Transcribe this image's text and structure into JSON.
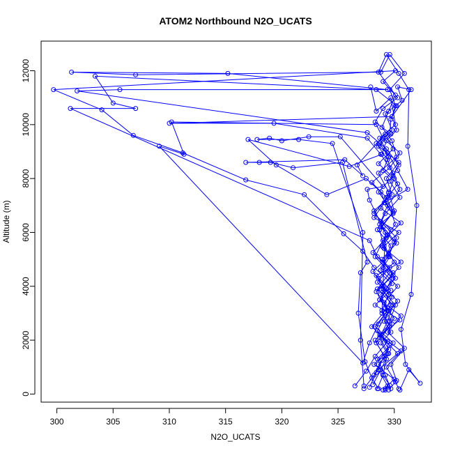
{
  "chart_data": {
    "type": "scatter",
    "title": "ATOM2 Northbound N2O_UCATS",
    "xlabel": "N2O_UCATS",
    "ylabel": "Altitude (m)",
    "xlim": [
      298.6,
      333.3
    ],
    "ylim": [
      -300,
      13100
    ],
    "xticks": [
      300,
      305,
      310,
      315,
      320,
      325,
      330
    ],
    "yticks": [
      0,
      2000,
      4000,
      6000,
      8000,
      10000,
      12000
    ],
    "grid": false,
    "legend": "none",
    "marker": "open-circle",
    "connected": true,
    "colors": {
      "series": "#0000ff",
      "axis": "#000000",
      "background": "#ffffff"
    },
    "series": [
      {
        "values": [
          [
            329.2,
            200
          ],
          [
            329.6,
            320
          ],
          [
            329.0,
            700
          ],
          [
            328.6,
            1100
          ],
          [
            329.4,
            1500
          ],
          [
            328.8,
            1900
          ],
          [
            329.7,
            2300
          ],
          [
            329.1,
            2700
          ],
          [
            329.5,
            3100
          ],
          [
            328.7,
            3500
          ],
          [
            329.3,
            3900
          ],
          [
            329.8,
            4300
          ],
          [
            329.0,
            4700
          ],
          [
            329.6,
            5100
          ],
          [
            328.9,
            5500
          ],
          [
            329.4,
            5900
          ],
          [
            328.7,
            6300
          ],
          [
            329.9,
            6700
          ],
          [
            329.2,
            7100
          ],
          [
            328.8,
            7500
          ],
          [
            327.5,
            8000
          ],
          [
            324.0,
            7400
          ],
          [
            319.5,
            8500
          ],
          [
            317.0,
            9450
          ],
          [
            326.0,
            8450
          ],
          [
            328.9,
            8900
          ],
          [
            329.3,
            9400
          ],
          [
            330.2,
            9800
          ],
          [
            329.8,
            10300
          ],
          [
            330.1,
            10700
          ],
          [
            329.6,
            11300
          ],
          [
            330.9,
            11900
          ],
          [
            329.6,
            12600
          ],
          [
            328.8,
            11950
          ],
          [
            307.0,
            11850
          ],
          [
            301.3,
            11950
          ],
          [
            315.2,
            11900
          ],
          [
            329.4,
            11300
          ],
          [
            305.6,
            11300
          ],
          [
            301.8,
            11250
          ],
          [
            327.6,
            9700
          ],
          [
            329.3,
            9100
          ],
          [
            330.4,
            8500
          ],
          [
            329.6,
            7900
          ],
          [
            330.5,
            7300
          ],
          [
            329.2,
            6700
          ],
          [
            328.5,
            6100
          ],
          [
            329.7,
            5500
          ],
          [
            329.0,
            4900
          ],
          [
            330.1,
            4300
          ],
          [
            328.8,
            3700
          ],
          [
            329.4,
            3100
          ],
          [
            328.3,
            2500
          ],
          [
            329.9,
            1900
          ],
          [
            328.5,
            1300
          ],
          [
            329.2,
            700
          ],
          [
            329.7,
            200
          ]
        ]
      },
      {
        "values": [
          [
            328.5,
            200
          ],
          [
            329.0,
            700
          ],
          [
            329.3,
            1300
          ],
          [
            328.4,
            1900
          ],
          [
            329.6,
            2500
          ],
          [
            328.9,
            3100
          ],
          [
            329.5,
            3700
          ],
          [
            328.6,
            4300
          ],
          [
            330.0,
            4900
          ],
          [
            329.1,
            5500
          ],
          [
            329.7,
            6100
          ],
          [
            328.2,
            6700
          ],
          [
            329.4,
            7300
          ],
          [
            330.3,
            7800
          ],
          [
            329.0,
            8300
          ],
          [
            329.5,
            8800
          ],
          [
            328.7,
            9300
          ],
          [
            329.8,
            9800
          ],
          [
            329.2,
            10400
          ],
          [
            330.7,
            10900
          ],
          [
            330.3,
            11400
          ],
          [
            331.5,
            11300
          ],
          [
            329.8,
            10300
          ],
          [
            310.0,
            10050
          ],
          [
            319.3,
            10050
          ],
          [
            327.6,
            9500
          ],
          [
            328.8,
            8900
          ],
          [
            329.9,
            8200
          ],
          [
            330.5,
            7600
          ],
          [
            329.4,
            7000
          ],
          [
            328.8,
            6400
          ],
          [
            330.2,
            5800
          ],
          [
            329.5,
            5200
          ],
          [
            328.8,
            4600
          ],
          [
            330.3,
            4000
          ],
          [
            329.1,
            3400
          ],
          [
            330.0,
            2800
          ],
          [
            328.7,
            2200
          ],
          [
            330.6,
            1600
          ],
          [
            329.3,
            1000
          ],
          [
            330.1,
            450
          ],
          [
            330.4,
            200
          ]
        ]
      },
      {
        "values": [
          [
            328.1,
            350
          ],
          [
            328.8,
            900
          ],
          [
            329.5,
            1500
          ],
          [
            328.7,
            2100
          ],
          [
            329.4,
            2700
          ],
          [
            329.9,
            3300
          ],
          [
            328.5,
            3900
          ],
          [
            329.6,
            4500
          ],
          [
            328.3,
            5100
          ],
          [
            329.0,
            5700
          ],
          [
            330.1,
            6300
          ],
          [
            329.6,
            6900
          ],
          [
            328.6,
            7500
          ],
          [
            329.9,
            8100
          ],
          [
            329.4,
            8700
          ],
          [
            328.4,
            9300
          ],
          [
            329.6,
            9700
          ],
          [
            329.7,
            10200
          ],
          [
            330.2,
            10700
          ],
          [
            328.4,
            11300
          ],
          [
            303.4,
            11800
          ],
          [
            305.0,
            10800
          ],
          [
            307.0,
            10600
          ],
          [
            301.2,
            10600
          ],
          [
            327.8,
            5700
          ],
          [
            328.5,
            5100
          ],
          [
            329.9,
            4500
          ],
          [
            328.8,
            3900
          ],
          [
            330.1,
            3300
          ],
          [
            329.6,
            2700
          ],
          [
            328.9,
            2100
          ],
          [
            330.3,
            1500
          ],
          [
            328.6,
            900
          ],
          [
            329.4,
            300
          ],
          [
            329.2,
            150
          ]
        ]
      },
      {
        "values": [
          [
            327.8,
            250
          ],
          [
            328.4,
            800
          ],
          [
            329.1,
            1400
          ],
          [
            328.3,
            2000
          ],
          [
            329.8,
            2600
          ],
          [
            329.2,
            3200
          ],
          [
            328.4,
            3800
          ],
          [
            329.9,
            4400
          ],
          [
            328.9,
            5000
          ],
          [
            330.2,
            5600
          ],
          [
            329.0,
            6200
          ],
          [
            328.2,
            6800
          ],
          [
            329.8,
            7400
          ],
          [
            329.3,
            8000
          ],
          [
            330.4,
            8600
          ],
          [
            328.6,
            9200
          ],
          [
            329.7,
            9650
          ],
          [
            328.3,
            10100
          ],
          [
            329.0,
            10600
          ],
          [
            330.3,
            11000
          ],
          [
            329.0,
            11600
          ],
          [
            330.1,
            12000
          ],
          [
            299.7,
            11300
          ],
          [
            304.0,
            10550
          ],
          [
            306.8,
            9600
          ],
          [
            311.2,
            8950
          ],
          [
            316.8,
            7950
          ],
          [
            322.0,
            7400
          ],
          [
            325.5,
            5950
          ],
          [
            327.2,
            5300
          ],
          [
            328.2,
            4700
          ],
          [
            329.8,
            4100
          ],
          [
            328.7,
            3500
          ],
          [
            330.6,
            2900
          ],
          [
            329.4,
            2300
          ],
          [
            330.9,
            1700
          ],
          [
            329.7,
            1100
          ],
          [
            330.2,
            500
          ],
          [
            329.5,
            150
          ]
        ]
      },
      {
        "values": [
          [
            327.3,
            200
          ],
          [
            328.2,
            700
          ],
          [
            328.9,
            1250
          ],
          [
            329.6,
            1800
          ],
          [
            328.5,
            2350
          ],
          [
            329.2,
            2900
          ],
          [
            330.3,
            3450
          ],
          [
            329.0,
            4000
          ],
          [
            328.1,
            4550
          ],
          [
            329.5,
            5100
          ],
          [
            330.0,
            5650
          ],
          [
            328.8,
            6200
          ],
          [
            329.9,
            6750
          ],
          [
            329.3,
            7300
          ],
          [
            328.0,
            7850
          ],
          [
            329.6,
            8400
          ],
          [
            330.5,
            8950
          ],
          [
            329.0,
            9500
          ],
          [
            328.4,
            10000
          ],
          [
            310.2,
            10100
          ],
          [
            311.3,
            8900
          ],
          [
            309.1,
            9200
          ],
          [
            327.2,
            1150
          ],
          [
            327.8,
            1900
          ],
          [
            328.6,
            2600
          ],
          [
            329.7,
            3300
          ],
          [
            328.9,
            4000
          ],
          [
            330.4,
            4700
          ],
          [
            329.1,
            5400
          ],
          [
            328.7,
            6100
          ],
          [
            330.0,
            6800
          ],
          [
            329.5,
            7500
          ],
          [
            328.6,
            8200
          ],
          [
            330.2,
            8800
          ],
          [
            329.8,
            9400
          ],
          [
            328.9,
            9900
          ],
          [
            329.5,
            10500
          ],
          [
            330.1,
            11100
          ],
          [
            328.6,
            11950
          ],
          [
            329.3,
            12600
          ],
          [
            330.4,
            11900
          ],
          [
            331.3,
            11300
          ],
          [
            331.2,
            9200
          ],
          [
            332.0,
            7000
          ],
          [
            331.5,
            3700
          ],
          [
            330.6,
            2400
          ],
          [
            331.0,
            1100
          ],
          [
            332.3,
            400
          ],
          [
            331.3,
            900
          ],
          [
            330.5,
            150
          ]
        ]
      },
      {
        "values": [
          [
            326.5,
            300
          ],
          [
            327.5,
            850
          ],
          [
            328.3,
            1400
          ],
          [
            329.4,
            1950
          ],
          [
            328.0,
            2500
          ],
          [
            329.1,
            3050
          ],
          [
            329.8,
            3600
          ],
          [
            328.5,
            4150
          ],
          [
            329.6,
            4700
          ],
          [
            328.1,
            5250
          ],
          [
            329.3,
            5800
          ],
          [
            330.6,
            6350
          ],
          [
            328.8,
            6900
          ],
          [
            329.5,
            7450
          ],
          [
            330.0,
            8000
          ],
          [
            328.6,
            8550
          ],
          [
            329.9,
            9100
          ],
          [
            329.2,
            9650
          ],
          [
            326.7,
            8500
          ],
          [
            327.2,
            8100
          ],
          [
            325.6,
            8700
          ],
          [
            316.8,
            8600
          ],
          [
            318.0,
            8600
          ],
          [
            319.0,
            8600
          ],
          [
            321.0,
            8400
          ],
          [
            325.4,
            8600
          ],
          [
            327.6,
            4900
          ],
          [
            327.0,
            4500
          ],
          [
            326.8,
            3000
          ],
          [
            327.4,
            1200
          ],
          [
            328.0,
            600
          ],
          [
            328.6,
            200
          ]
        ]
      },
      {
        "values": [
          [
            328.9,
            3000
          ],
          [
            329.2,
            6000
          ],
          [
            327.8,
            7200
          ],
          [
            327.6,
            7600
          ],
          [
            329.0,
            7700
          ],
          [
            325.2,
            9550
          ],
          [
            322.4,
            9550
          ],
          [
            320.0,
            9400
          ],
          [
            318.9,
            9500
          ],
          [
            317.8,
            9450
          ],
          [
            321.5,
            9450
          ],
          [
            324.5,
            9300
          ],
          [
            327.2,
            6000
          ],
          [
            327.0,
            2000
          ],
          [
            327.3,
            300
          ]
        ]
      },
      {
        "values": [
          [
            327.9,
            11400
          ],
          [
            328.4,
            10500
          ],
          [
            329.7,
            11000
          ],
          [
            330.1,
            10000
          ],
          [
            328.7,
            9500
          ],
          [
            329.4,
            8950
          ],
          [
            330.3,
            8300
          ],
          [
            331.2,
            7600
          ],
          [
            329.1,
            7100
          ],
          [
            328.2,
            6550
          ],
          [
            330.4,
            6000
          ],
          [
            329.0,
            5450
          ],
          [
            330.6,
            4900
          ],
          [
            328.4,
            4400
          ],
          [
            329.7,
            3850
          ],
          [
            328.3,
            3300
          ],
          [
            330.5,
            2750
          ],
          [
            328.8,
            2200
          ],
          [
            329.5,
            1650
          ],
          [
            328.2,
            1100
          ],
          [
            330.0,
            550
          ],
          [
            329.0,
            150
          ]
        ]
      }
    ]
  }
}
